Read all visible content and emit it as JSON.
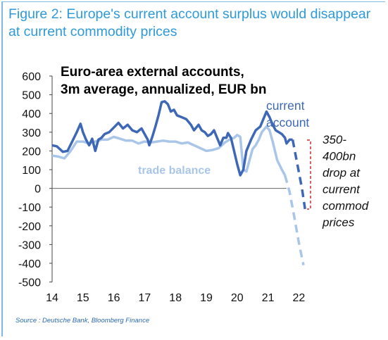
{
  "figure": {
    "title": "Figure 2: Europe's current account surplus would disappear at current commodity prices",
    "source": "Source : Deutsche Bank, Bloomberg Finance"
  },
  "chart_data": {
    "type": "line",
    "title": "Euro-area external accounts, 3m average, annualized, EUR bn",
    "title_lines": [
      "Euro-area external accounts,",
      "3m average, annualized, EUR bn"
    ],
    "ylim": [
      -500,
      600
    ],
    "y_ticks": [
      "600",
      "500",
      "400",
      "300",
      "200",
      "100",
      "0",
      "-100",
      "-200",
      "-300",
      "-400",
      "-500"
    ],
    "xlim": [
      14,
      22.2
    ],
    "x_ticks": [
      "14",
      "15",
      "16",
      "17",
      "18",
      "19",
      "20",
      "21",
      "22"
    ],
    "grid": false,
    "colors": {
      "current_account": "#3e68b6",
      "trade_balance": "#a9c6e9",
      "annotation": "#d42a2a"
    },
    "series": [
      {
        "name": "current account",
        "label_lines": [
          "current",
          "account"
        ],
        "points": [
          [
            14.0,
            230
          ],
          [
            14.15,
            225
          ],
          [
            14.35,
            195
          ],
          [
            14.5,
            200
          ],
          [
            14.65,
            250
          ],
          [
            14.8,
            300
          ],
          [
            14.92,
            345
          ],
          [
            15.0,
            300
          ],
          [
            15.1,
            260
          ],
          [
            15.2,
            230
          ],
          [
            15.3,
            265
          ],
          [
            15.4,
            200
          ],
          [
            15.5,
            260
          ],
          [
            15.6,
            270
          ],
          [
            15.7,
            290
          ],
          [
            15.85,
            300
          ],
          [
            16.0,
            325
          ],
          [
            16.15,
            350
          ],
          [
            16.3,
            320
          ],
          [
            16.45,
            340
          ],
          [
            16.6,
            310
          ],
          [
            16.75,
            300
          ],
          [
            16.9,
            320
          ],
          [
            17.0,
            290
          ],
          [
            17.1,
            260
          ],
          [
            17.15,
            230
          ],
          [
            17.25,
            275
          ],
          [
            17.35,
            330
          ],
          [
            17.45,
            390
          ],
          [
            17.55,
            460
          ],
          [
            17.65,
            465
          ],
          [
            17.75,
            450
          ],
          [
            17.85,
            410
          ],
          [
            17.95,
            420
          ],
          [
            18.05,
            390
          ],
          [
            18.2,
            380
          ],
          [
            18.35,
            370
          ],
          [
            18.5,
            340
          ],
          [
            18.6,
            310
          ],
          [
            18.75,
            340
          ],
          [
            18.85,
            310
          ],
          [
            18.95,
            300
          ],
          [
            19.05,
            280
          ],
          [
            19.15,
            290
          ],
          [
            19.25,
            310
          ],
          [
            19.35,
            270
          ],
          [
            19.45,
            230
          ],
          [
            19.55,
            270
          ],
          [
            19.65,
            270
          ],
          [
            19.7,
            295
          ],
          [
            19.8,
            270
          ],
          [
            19.9,
            200
          ],
          [
            20.0,
            130
          ],
          [
            20.1,
            70
          ],
          [
            20.2,
            100
          ],
          [
            20.3,
            200
          ],
          [
            20.45,
            260
          ],
          [
            20.6,
            310
          ],
          [
            20.75,
            330
          ],
          [
            20.85,
            370
          ],
          [
            20.95,
            410
          ],
          [
            21.05,
            380
          ],
          [
            21.15,
            340
          ],
          [
            21.25,
            310
          ],
          [
            21.35,
            300
          ],
          [
            21.45,
            290
          ],
          [
            21.55,
            270
          ],
          [
            21.6,
            240
          ],
          [
            21.7,
            260
          ],
          [
            21.8,
            260
          ]
        ],
        "projection": [
          [
            21.8,
            260
          ],
          [
            21.95,
            130
          ],
          [
            22.1,
            0
          ],
          [
            22.2,
            -110
          ]
        ]
      },
      {
        "name": "trade balance",
        "label_lines": [
          "trade balance"
        ],
        "points": [
          [
            14.0,
            175
          ],
          [
            14.2,
            170
          ],
          [
            14.4,
            160
          ],
          [
            14.6,
            200
          ],
          [
            14.8,
            250
          ],
          [
            15.0,
            250
          ],
          [
            15.2,
            240
          ],
          [
            15.4,
            250
          ],
          [
            15.6,
            260
          ],
          [
            15.8,
            260
          ],
          [
            16.0,
            275
          ],
          [
            16.2,
            265
          ],
          [
            16.4,
            255
          ],
          [
            16.6,
            255
          ],
          [
            16.8,
            240
          ],
          [
            17.0,
            250
          ],
          [
            17.2,
            245
          ],
          [
            17.4,
            250
          ],
          [
            17.6,
            255
          ],
          [
            17.8,
            250
          ],
          [
            18.0,
            250
          ],
          [
            18.2,
            240
          ],
          [
            18.4,
            245
          ],
          [
            18.6,
            230
          ],
          [
            18.8,
            215
          ],
          [
            19.0,
            200
          ],
          [
            19.2,
            205
          ],
          [
            19.4,
            215
          ],
          [
            19.6,
            245
          ],
          [
            19.75,
            260
          ],
          [
            19.9,
            270
          ],
          [
            20.0,
            285
          ],
          [
            20.1,
            275
          ],
          [
            20.2,
            100
          ],
          [
            20.3,
            90
          ],
          [
            20.4,
            150
          ],
          [
            20.5,
            210
          ],
          [
            20.6,
            230
          ],
          [
            20.7,
            260
          ],
          [
            20.8,
            300
          ],
          [
            20.95,
            330
          ],
          [
            21.05,
            310
          ],
          [
            21.15,
            250
          ],
          [
            21.3,
            150
          ],
          [
            21.45,
            100
          ],
          [
            21.55,
            70
          ]
        ],
        "projection": [
          [
            21.55,
            70
          ],
          [
            21.7,
            -20
          ],
          [
            21.85,
            -150
          ],
          [
            22.0,
            -290
          ],
          [
            22.15,
            -410
          ]
        ]
      }
    ],
    "annotation": {
      "label_lines": [
        "350-",
        "400bn",
        "drop at",
        "current",
        "commod",
        "prices"
      ]
    }
  }
}
